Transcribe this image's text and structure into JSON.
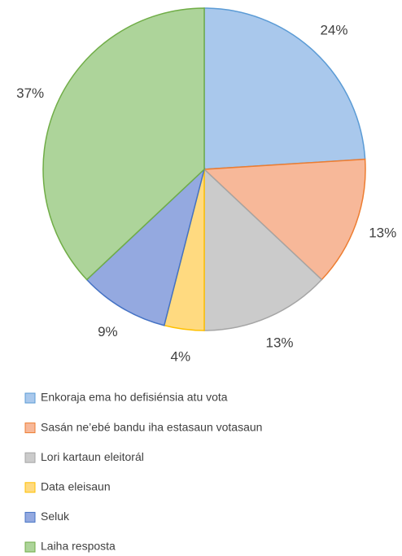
{
  "chart_data": {
    "type": "pie",
    "categories": [
      "Enkoraja ema ho defisiénsia atu vota",
      "Sasán ne’ebé bandu iha estasaun votasaun",
      "Lori kartaun eleitorál",
      "Data eleisaun",
      "Seluk",
      "Laiha resposta"
    ],
    "values": [
      24,
      13,
      13,
      4,
      9,
      37
    ],
    "value_labels": [
      "24%",
      "13%",
      "13%",
      "4%",
      "9%",
      "37%"
    ],
    "colors": [
      "#a9c8ec",
      "#f7b899",
      "#cbcbcb",
      "#ffda80",
      "#94a9e0",
      "#add49a"
    ],
    "edge_colors": [
      "#5b9bd5",
      "#ed7d31",
      "#a5a5a5",
      "#ffc000",
      "#4472c4",
      "#70ad47"
    ],
    "legend": "bottom"
  }
}
